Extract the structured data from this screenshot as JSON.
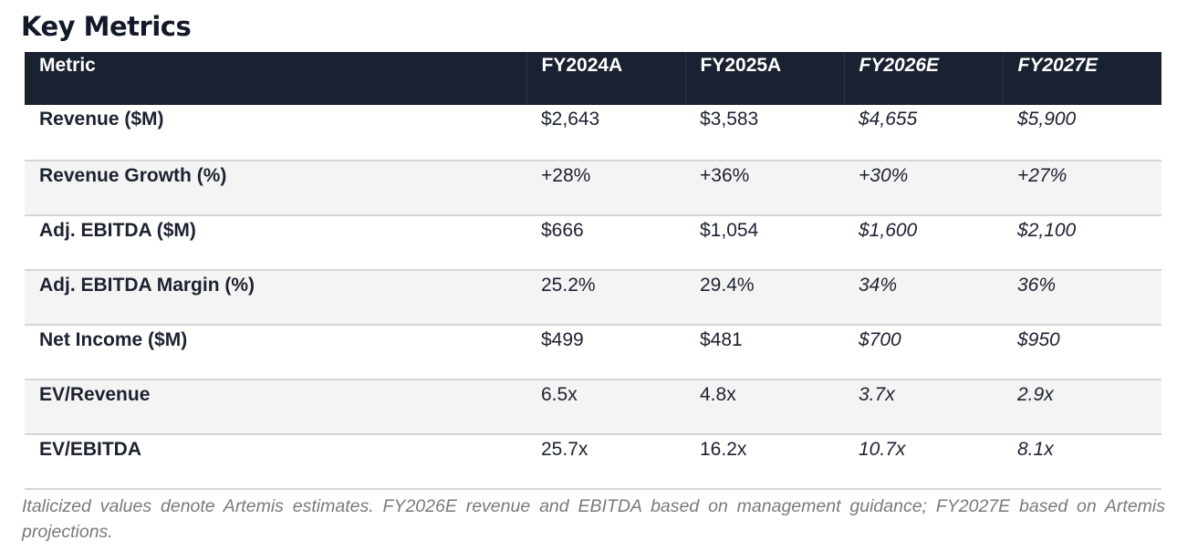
{
  "title": "Key Metrics",
  "table": {
    "headers": [
      "Metric",
      "FY2024A",
      "FY2025A",
      "FY2026E",
      "FY2027E"
    ],
    "rows": [
      {
        "metric": "Revenue ($M)",
        "values": [
          "$2,643",
          "$3,583",
          "$4,655",
          "$5,900"
        ]
      },
      {
        "metric": "Revenue Growth (%)",
        "values": [
          "+28%",
          "+36%",
          "+30%",
          "+27%"
        ]
      },
      {
        "metric": "Adj. EBITDA ($M)",
        "values": [
          "$666",
          "$1,054",
          "$1,600",
          "$2,100"
        ]
      },
      {
        "metric": "Adj. EBITDA Margin (%)",
        "values": [
          "25.2%",
          "29.4%",
          "34%",
          "36%"
        ]
      },
      {
        "metric": "Net Income ($M)",
        "values": [
          "$499",
          "$481",
          "$700",
          "$950"
        ]
      },
      {
        "metric": "EV/Revenue",
        "values": [
          "6.5x",
          "4.8x",
          "3.7x",
          "2.9x"
        ]
      },
      {
        "metric": "EV/EBITDA",
        "values": [
          "25.7x",
          "16.2x",
          "10.7x",
          "8.1x"
        ]
      }
    ]
  },
  "footnote": "Italicized values denote Artemis estimates. FY2026E revenue and EBITDA based on management guidance; FY2027E based on Artemis projections."
}
